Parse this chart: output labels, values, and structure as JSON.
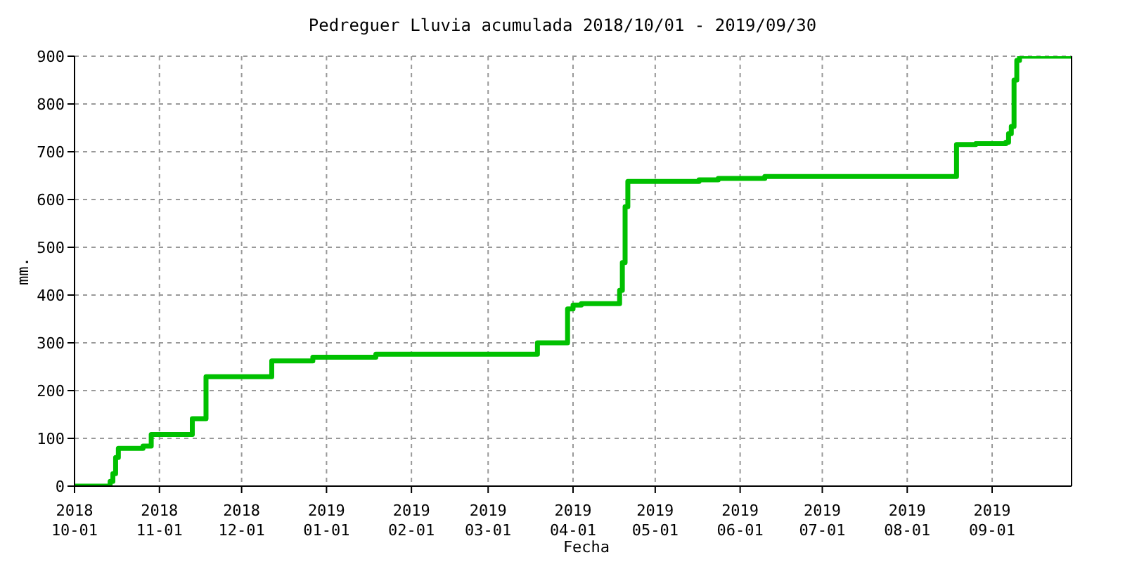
{
  "chart_data": {
    "type": "step",
    "title": "Pedreguer Lluvia acumulada 2018/10/01 - 2019/09/30",
    "xlabel": "Fecha",
    "ylabel": "mm.",
    "x": [
      "2018-10-01",
      "2018-10-14",
      "2018-10-15",
      "2018-10-16",
      "2018-10-17",
      "2018-10-26",
      "2018-10-29",
      "2018-11-13",
      "2018-11-18",
      "2018-12-12",
      "2018-12-27",
      "2019-01-19",
      "2019-03-19",
      "2019-03-30",
      "2019-04-01",
      "2019-04-04",
      "2019-04-18",
      "2019-04-19",
      "2019-04-20",
      "2019-04-21",
      "2019-05-17",
      "2019-05-24",
      "2019-06-10",
      "2019-08-19",
      "2019-08-26",
      "2019-09-06",
      "2019-09-07",
      "2019-09-08",
      "2019-09-09",
      "2019-09-10",
      "2019-09-11",
      "2019-09-30"
    ],
    "series": [
      {
        "color": "#00c000",
        "values": [
          0,
          10,
          26,
          60,
          79,
          84,
          108,
          141,
          229,
          262,
          270,
          276,
          300,
          371,
          379,
          382,
          410,
          468,
          585,
          638,
          641,
          644,
          648,
          715,
          717,
          720,
          738,
          753,
          850,
          891,
          900,
          900
        ]
      }
    ],
    "xlim": [
      "2018-10-01",
      "2019-09-30"
    ],
    "xticks": [
      {
        "value": "2018-10-01",
        "label": "2018\n10-01"
      },
      {
        "value": "2018-11-01",
        "label": "2018\n11-01"
      },
      {
        "value": "2018-12-01",
        "label": "2018\n12-01"
      },
      {
        "value": "2019-01-01",
        "label": "2019\n01-01"
      },
      {
        "value": "2019-02-01",
        "label": "2019\n02-01"
      },
      {
        "value": "2019-03-01",
        "label": "2019\n03-01"
      },
      {
        "value": "2019-04-01",
        "label": "2019\n04-01"
      },
      {
        "value": "2019-05-01",
        "label": "2019\n05-01"
      },
      {
        "value": "2019-06-01",
        "label": "2019\n06-01"
      },
      {
        "value": "2019-07-01",
        "label": "2019\n07-01"
      },
      {
        "value": "2019-08-01",
        "label": "2019\n08-01"
      },
      {
        "value": "2019-09-01",
        "label": "2019\n09-01"
      }
    ],
    "ylim": [
      0,
      900
    ],
    "yticks": [
      0,
      100,
      200,
      300,
      400,
      500,
      600,
      700,
      800,
      900
    ],
    "grid": true,
    "legend": false,
    "marker": "none",
    "line_style": "solid"
  }
}
